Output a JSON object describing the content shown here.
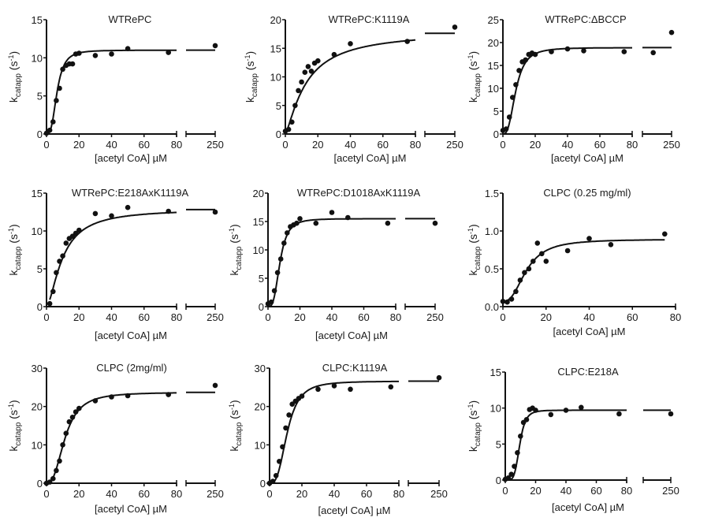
{
  "figure": {
    "ylabel_main": "k",
    "ylabel_sub": "catapp",
    "ylabel_unit_open": " (s",
    "ylabel_unit_sup": "-1",
    "ylabel_unit_close": ")"
  },
  "chart_data": [
    {
      "type": "scatter",
      "title": "WTRePC",
      "xlabel": "[acetyl CoA] µM",
      "ylabel": "kcatapp (s-1)",
      "ylim": [
        0,
        15
      ],
      "yticks": [
        0,
        5,
        10,
        15
      ],
      "xticks": [
        0,
        20,
        40,
        60,
        80
      ],
      "xlim": [
        0,
        80
      ],
      "axis_break": true,
      "break_tick": 250,
      "fit": {
        "vmax": 11.0,
        "k": 6.5,
        "n": 3.0
      },
      "points": [
        [
          0,
          0.1
        ],
        [
          2,
          0.5
        ],
        [
          4,
          1.6
        ],
        [
          6,
          4.4
        ],
        [
          8,
          6.0
        ],
        [
          10,
          8.5
        ],
        [
          12,
          9.0
        ],
        [
          14,
          9.2
        ],
        [
          16,
          9.2
        ],
        [
          18,
          10.5
        ],
        [
          20,
          10.6
        ],
        [
          30,
          10.3
        ],
        [
          40,
          10.5
        ],
        [
          50,
          11.2
        ],
        [
          75,
          10.7
        ],
        [
          250,
          11.6
        ]
      ],
      "grid": false
    },
    {
      "type": "scatter",
      "title": "WTRePC:K1119A",
      "xlabel": "[acetyl CoA] µM",
      "ylabel": "kcatapp (s-1)",
      "ylim": [
        0,
        20
      ],
      "yticks": [
        0,
        5,
        10,
        15,
        20
      ],
      "xticks": [
        0,
        20,
        40,
        60,
        80
      ],
      "xlim": [
        0,
        80
      ],
      "axis_break": true,
      "break_tick": 250,
      "fit": {
        "vmax": 18.0,
        "k": 13.0,
        "n": 1.3
      },
      "points": [
        [
          0,
          0.5
        ],
        [
          2,
          0.8
        ],
        [
          4,
          2.1
        ],
        [
          6,
          5.0
        ],
        [
          8,
          7.6
        ],
        [
          10,
          9.1
        ],
        [
          12,
          10.8
        ],
        [
          14,
          11.8
        ],
        [
          16,
          11.0
        ],
        [
          18,
          12.4
        ],
        [
          20,
          12.8
        ],
        [
          30,
          13.9
        ],
        [
          40,
          15.8
        ],
        [
          75,
          16.2
        ],
        [
          250,
          18.7
        ]
      ],
      "grid": false
    },
    {
      "type": "scatter",
      "title": "WTRePC:ΔBCCP",
      "xlabel": "[acetyl CoA] µM",
      "ylabel": "kcatapp (s-1)",
      "ylim": [
        0,
        25
      ],
      "yticks": [
        0,
        5,
        10,
        15,
        20,
        25
      ],
      "xticks": [
        0,
        20,
        40,
        60,
        80
      ],
      "xlim": [
        0,
        80
      ],
      "axis_break": true,
      "break_tick": 250,
      "fit": {
        "vmax": 18.9,
        "k": 8.0,
        "n": 2.8
      },
      "points": [
        [
          0,
          0.8
        ],
        [
          2,
          1.1
        ],
        [
          4,
          3.7
        ],
        [
          6,
          8.0
        ],
        [
          8,
          10.8
        ],
        [
          10,
          13.9
        ],
        [
          12,
          15.8
        ],
        [
          14,
          16.2
        ],
        [
          16,
          17.4
        ],
        [
          18,
          17.7
        ],
        [
          20,
          17.4
        ],
        [
          30,
          18.0
        ],
        [
          40,
          18.6
        ],
        [
          50,
          18.2
        ],
        [
          75,
          18.0
        ],
        [
          150,
          17.8
        ],
        [
          250,
          22.2
        ]
      ],
      "grid": false
    },
    {
      "type": "scatter",
      "title": "WTRePC:E218AxK1119A",
      "xlabel": "[acetyl CoA] µM",
      "ylabel": "kcatapp (s-1)",
      "ylim": [
        0,
        15
      ],
      "yticks": [
        0,
        5,
        10,
        15
      ],
      "xticks": [
        0,
        20,
        40,
        60,
        80
      ],
      "xlim": [
        0,
        80
      ],
      "axis_break": true,
      "break_tick": 250,
      "fit": {
        "vmax": 12.9,
        "k": 10.0,
        "n": 1.6
      },
      "points": [
        [
          2,
          0.4
        ],
        [
          4,
          2.0
        ],
        [
          6,
          4.5
        ],
        [
          8,
          6.0
        ],
        [
          10,
          6.7
        ],
        [
          12,
          8.4
        ],
        [
          14,
          9.0
        ],
        [
          16,
          9.3
        ],
        [
          18,
          9.7
        ],
        [
          20,
          10.1
        ],
        [
          30,
          12.3
        ],
        [
          40,
          12.0
        ],
        [
          50,
          13.1
        ],
        [
          75,
          12.6
        ],
        [
          250,
          12.5
        ]
      ],
      "grid": false
    },
    {
      "type": "scatter",
      "title": "WTRePC:D1018AxK1119A",
      "xlabel": "[acetyl CoA] µM",
      "ylabel": "kcatapp (s-1)",
      "ylim": [
        0,
        20
      ],
      "yticks": [
        0,
        5,
        10,
        15,
        20
      ],
      "xticks": [
        0,
        20,
        40,
        60,
        80
      ],
      "xlim": [
        0,
        80
      ],
      "axis_break": true,
      "break_tick": 250,
      "fit": {
        "vmax": 15.5,
        "k": 7.5,
        "n": 3.2
      },
      "points": [
        [
          0,
          0.5
        ],
        [
          2,
          0.8
        ],
        [
          4,
          2.8
        ],
        [
          6,
          6.0
        ],
        [
          8,
          8.4
        ],
        [
          10,
          11.2
        ],
        [
          12,
          13.0
        ],
        [
          14,
          14.1
        ],
        [
          16,
          14.4
        ],
        [
          18,
          14.7
        ],
        [
          20,
          15.5
        ],
        [
          30,
          14.7
        ],
        [
          40,
          16.6
        ],
        [
          50,
          15.7
        ],
        [
          75,
          14.7
        ],
        [
          250,
          14.7
        ]
      ],
      "grid": false
    },
    {
      "type": "scatter",
      "title": "CLPC (0.25 mg/ml)",
      "xlabel": "[acetyl CoA] µM",
      "ylabel": "kcatapp (s-1)",
      "ylim": [
        0,
        1.5
      ],
      "yticks": [
        0.0,
        0.5,
        1.0,
        1.5
      ],
      "ytick_labels": [
        "0.0",
        "0.5",
        "1.0",
        "1.5"
      ],
      "xticks": [
        0,
        20,
        40,
        60,
        80
      ],
      "xlim": [
        0,
        80
      ],
      "axis_break": false,
      "fit": {
        "vmax": 0.82,
        "k": 11.0,
        "n": 2.5,
        "base": 0.07
      },
      "points": [
        [
          0,
          0.07
        ],
        [
          2,
          0.06
        ],
        [
          4,
          0.1
        ],
        [
          6,
          0.2
        ],
        [
          8,
          0.35
        ],
        [
          10,
          0.45
        ],
        [
          12,
          0.5
        ],
        [
          14,
          0.6
        ],
        [
          16,
          0.84
        ],
        [
          18,
          0.7
        ],
        [
          20,
          0.6
        ],
        [
          30,
          0.74
        ],
        [
          40,
          0.9
        ],
        [
          50,
          0.82
        ],
        [
          75,
          0.96
        ]
      ],
      "grid": false
    },
    {
      "type": "scatter",
      "title": "CLPC (2mg/ml)",
      "xlabel": "[acetyl CoA] µM",
      "ylabel": "kcatapp (s-1)",
      "ylim": [
        0,
        30
      ],
      "yticks": [
        0,
        10,
        20,
        30
      ],
      "xticks": [
        0,
        20,
        40,
        60,
        80
      ],
      "xlim": [
        0,
        80
      ],
      "axis_break": true,
      "break_tick": 250,
      "fit": {
        "vmax": 23.7,
        "k": 11.5,
        "n": 2.6
      },
      "points": [
        [
          0,
          0.0
        ],
        [
          2,
          0.3
        ],
        [
          4,
          1.2
        ],
        [
          6,
          3.3
        ],
        [
          8,
          5.8
        ],
        [
          10,
          10.0
        ],
        [
          12,
          13.0
        ],
        [
          14,
          16.0
        ],
        [
          16,
          17.2
        ],
        [
          18,
          18.6
        ],
        [
          20,
          19.5
        ],
        [
          30,
          21.5
        ],
        [
          40,
          22.5
        ],
        [
          50,
          22.8
        ],
        [
          75,
          23.1
        ],
        [
          250,
          25.5
        ]
      ],
      "grid": false
    },
    {
      "type": "scatter",
      "title": "CLPC:K1119A",
      "xlabel": "[acetyl CoA] µM",
      "ylabel": "kcatapp (s-1)",
      "ylim": [
        0,
        30
      ],
      "yticks": [
        0,
        10,
        20,
        30
      ],
      "xticks": [
        0,
        20,
        40,
        60,
        80
      ],
      "xlim": [
        0,
        80
      ],
      "axis_break": true,
      "break_tick": 250,
      "fit": {
        "vmax": 26.6,
        "k": 11.0,
        "n": 3.0
      },
      "points": [
        [
          0,
          0.0
        ],
        [
          2,
          0.5
        ],
        [
          4,
          2.0
        ],
        [
          6,
          5.7
        ],
        [
          8,
          9.5
        ],
        [
          10,
          14.4
        ],
        [
          12,
          17.8
        ],
        [
          14,
          20.6
        ],
        [
          16,
          21.4
        ],
        [
          18,
          22.1
        ],
        [
          20,
          22.7
        ],
        [
          30,
          24.5
        ],
        [
          40,
          25.4
        ],
        [
          50,
          24.5
        ],
        [
          75,
          25.1
        ],
        [
          250,
          27.5
        ]
      ],
      "grid": false
    },
    {
      "type": "scatter",
      "title": "CLPC:E218A",
      "xlabel": "[acetyl CoA] µM",
      "ylabel": "kcatapp (s-1)",
      "ylim": [
        0,
        15
      ],
      "yticks": [
        0,
        5,
        10,
        15
      ],
      "xticks": [
        0,
        20,
        40,
        60,
        80
      ],
      "xlim": [
        0,
        80
      ],
      "axis_break": true,
      "break_tick": 250,
      "fit": {
        "vmax": 9.7,
        "k": 9.5,
        "n": 5.0
      },
      "points": [
        [
          0,
          0.1
        ],
        [
          2,
          0.3
        ],
        [
          4,
          0.8
        ],
        [
          6,
          1.9
        ],
        [
          8,
          3.8
        ],
        [
          10,
          6.1
        ],
        [
          12,
          8.0
        ],
        [
          14,
          8.4
        ],
        [
          16,
          9.8
        ],
        [
          18,
          10.0
        ],
        [
          20,
          9.7
        ],
        [
          30,
          9.1
        ],
        [
          40,
          9.7
        ],
        [
          50,
          10.1
        ],
        [
          75,
          9.2
        ],
        [
          250,
          9.2
        ]
      ],
      "grid": false
    }
  ]
}
